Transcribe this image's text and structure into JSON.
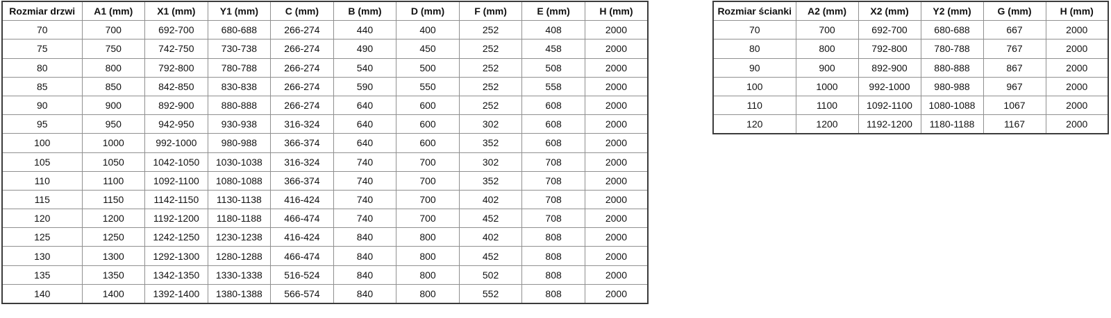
{
  "left_table": {
    "title": "door size table",
    "columns": [
      "Rozmiar drzwi",
      "A1 (mm)",
      "X1 (mm)",
      "Y1 (mm)",
      "C (mm)",
      "B (mm)",
      "D (mm)",
      "F (mm)",
      "E (mm)",
      "H (mm)"
    ],
    "rows": [
      [
        "70",
        "700",
        "692-700",
        "680-688",
        "266-274",
        "440",
        "400",
        "252",
        "408",
        "2000"
      ],
      [
        "75",
        "750",
        "742-750",
        "730-738",
        "266-274",
        "490",
        "450",
        "252",
        "458",
        "2000"
      ],
      [
        "80",
        "800",
        "792-800",
        "780-788",
        "266-274",
        "540",
        "500",
        "252",
        "508",
        "2000"
      ],
      [
        "85",
        "850",
        "842-850",
        "830-838",
        "266-274",
        "590",
        "550",
        "252",
        "558",
        "2000"
      ],
      [
        "90",
        "900",
        "892-900",
        "880-888",
        "266-274",
        "640",
        "600",
        "252",
        "608",
        "2000"
      ],
      [
        "95",
        "950",
        "942-950",
        "930-938",
        "316-324",
        "640",
        "600",
        "302",
        "608",
        "2000"
      ],
      [
        "100",
        "1000",
        "992-1000",
        "980-988",
        "366-374",
        "640",
        "600",
        "352",
        "608",
        "2000"
      ],
      [
        "105",
        "1050",
        "1042-1050",
        "1030-1038",
        "316-324",
        "740",
        "700",
        "302",
        "708",
        "2000"
      ],
      [
        "110",
        "1100",
        "1092-1100",
        "1080-1088",
        "366-374",
        "740",
        "700",
        "352",
        "708",
        "2000"
      ],
      [
        "115",
        "1150",
        "1142-1150",
        "1130-1138",
        "416-424",
        "740",
        "700",
        "402",
        "708",
        "2000"
      ],
      [
        "120",
        "1200",
        "1192-1200",
        "1180-1188",
        "466-474",
        "740",
        "700",
        "452",
        "708",
        "2000"
      ],
      [
        "125",
        "1250",
        "1242-1250",
        "1230-1238",
        "416-424",
        "840",
        "800",
        "402",
        "808",
        "2000"
      ],
      [
        "130",
        "1300",
        "1292-1300",
        "1280-1288",
        "466-474",
        "840",
        "800",
        "452",
        "808",
        "2000"
      ],
      [
        "135",
        "1350",
        "1342-1350",
        "1330-1338",
        "516-524",
        "840",
        "800",
        "502",
        "808",
        "2000"
      ],
      [
        "140",
        "1400",
        "1392-1400",
        "1380-1388",
        "566-574",
        "840",
        "800",
        "552",
        "808",
        "2000"
      ]
    ]
  },
  "right_table": {
    "title": "wall panel size table",
    "columns": [
      "Rozmiar ścianki",
      "A2 (mm)",
      "X2 (mm)",
      "Y2 (mm)",
      "G (mm)",
      "H (mm)"
    ],
    "rows": [
      [
        "70",
        "700",
        "692-700",
        "680-688",
        "667",
        "2000"
      ],
      [
        "80",
        "800",
        "792-800",
        "780-788",
        "767",
        "2000"
      ],
      [
        "90",
        "900",
        "892-900",
        "880-888",
        "867",
        "2000"
      ],
      [
        "100",
        "1000",
        "992-1000",
        "980-988",
        "967",
        "2000"
      ],
      [
        "110",
        "1100",
        "1092-1100",
        "1080-1088",
        "1067",
        "2000"
      ],
      [
        "120",
        "1200",
        "1192-1200",
        "1180-1188",
        "1167",
        "2000"
      ]
    ]
  },
  "colors": {
    "background": "#ffffff",
    "text": "#111111",
    "border_outer": "#3b3b3b",
    "border_inner": "#8f8f8f"
  }
}
